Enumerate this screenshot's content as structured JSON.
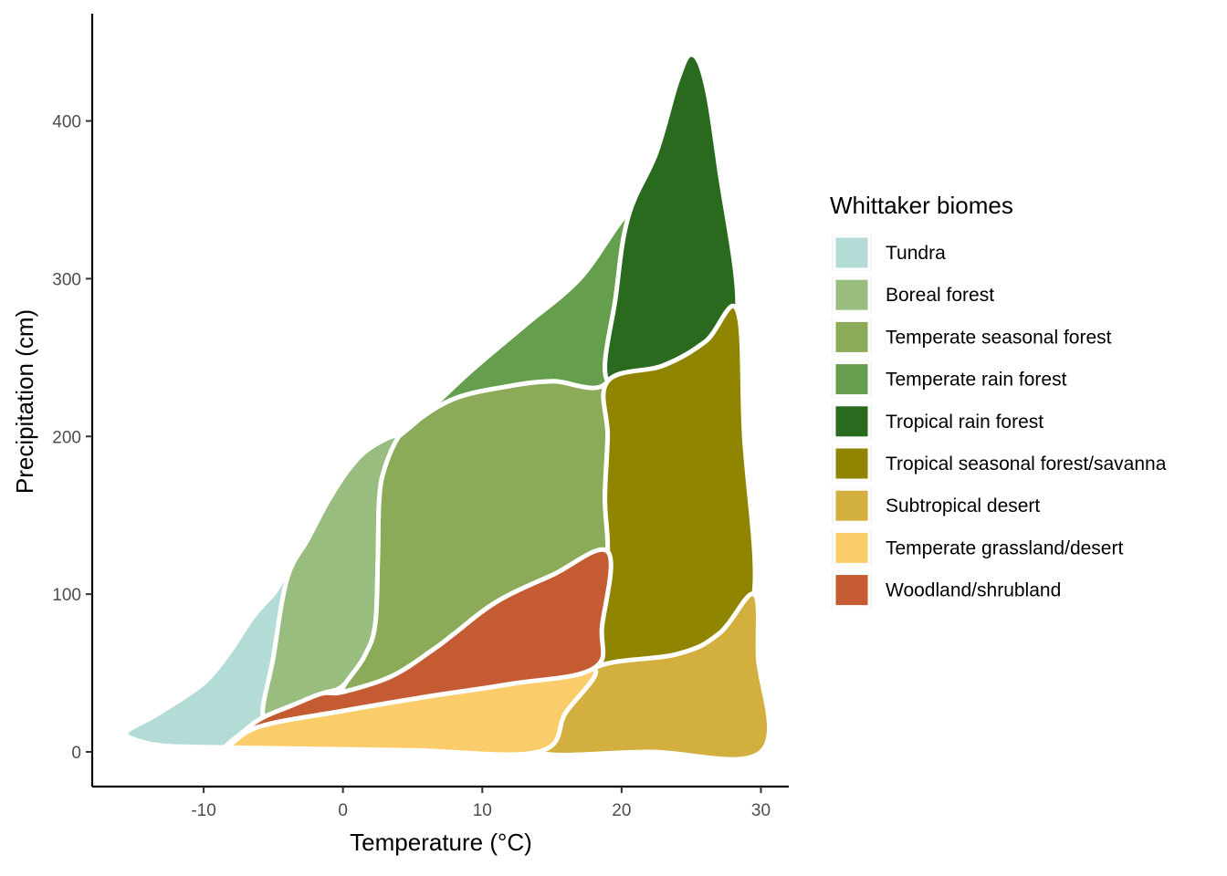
{
  "chart_data": {
    "type": "area",
    "title": "",
    "xlabel": "Temperature (°C)",
    "ylabel": "Precipitation (cm)",
    "xlim": [
      -18,
      32
    ],
    "ylim": [
      -22,
      468
    ],
    "x_ticks": [
      -10,
      0,
      10,
      20,
      30
    ],
    "x_tick_labels": [
      "-10",
      "0",
      "10",
      "20",
      "30"
    ],
    "y_ticks": [
      0,
      100,
      200,
      300,
      400
    ],
    "y_tick_labels": [
      "0",
      "100",
      "200",
      "300",
      "400"
    ],
    "grid": false,
    "legend": {
      "title": "Whittaker biomes",
      "placement": "right"
    },
    "series": [
      {
        "name": "Tundra",
        "color": "#B4DCD7",
        "points": [
          [
            -15.5,
            13
          ],
          [
            -15,
            8
          ],
          [
            -13,
            4
          ],
          [
            -10,
            3
          ],
          [
            -8.5,
            2.5
          ],
          [
            -7,
            4
          ],
          [
            -5.7,
            20
          ],
          [
            -5,
            60
          ],
          [
            -4,
            110
          ],
          [
            -5,
            100
          ],
          [
            -6.5,
            85
          ],
          [
            -8,
            65
          ],
          [
            -9.5,
            48
          ],
          [
            -11,
            37
          ],
          [
            -13.5,
            23
          ],
          [
            -15.5,
            13
          ]
        ]
      },
      {
        "name": "Boreal forest",
        "color": "#98BD7E",
        "points": [
          [
            -4,
            110
          ],
          [
            -2.5,
            135
          ],
          [
            -1,
            160
          ],
          [
            0.5,
            180
          ],
          [
            2,
            193
          ],
          [
            4,
            200
          ],
          [
            3,
            180
          ],
          [
            2.6,
            160
          ],
          [
            2.5,
            120
          ],
          [
            2.3,
            80
          ],
          [
            1.5,
            60
          ],
          [
            0,
            42
          ],
          [
            -1.5,
            37
          ],
          [
            -3.5,
            30
          ],
          [
            -5.7,
            22
          ],
          [
            -5,
            60
          ],
          [
            -4,
            110
          ]
        ]
      },
      {
        "name": "Temperate seasonal forest",
        "color": "#8BAB58",
        "points": [
          [
            4,
            200
          ],
          [
            5,
            208
          ],
          [
            8,
            224
          ],
          [
            12,
            232
          ],
          [
            15,
            235
          ],
          [
            19,
            235
          ],
          [
            19,
            200
          ],
          [
            18.8,
            160
          ],
          [
            19,
            127
          ],
          [
            15,
            112
          ],
          [
            11,
            95
          ],
          [
            8,
            75
          ],
          [
            6.5,
            65
          ],
          [
            3.5,
            48
          ],
          [
            0,
            38
          ],
          [
            1.5,
            60
          ],
          [
            2.3,
            80
          ],
          [
            2.5,
            120
          ],
          [
            2.6,
            160
          ],
          [
            3,
            180
          ],
          [
            4,
            200
          ]
        ]
      },
      {
        "name": "Temperate rain forest",
        "color": "#659E4C",
        "points": [
          [
            4,
            200
          ],
          [
            6,
            215
          ],
          [
            9,
            240
          ],
          [
            13,
            270
          ],
          [
            17,
            300
          ],
          [
            20.5,
            340
          ],
          [
            19.6,
            290
          ],
          [
            19,
            235
          ],
          [
            15,
            235
          ],
          [
            12,
            232
          ],
          [
            8,
            224
          ],
          [
            5,
            208
          ],
          [
            4,
            200
          ]
        ]
      },
      {
        "name": "Tropical rain forest",
        "color": "#2A6A1F",
        "points": [
          [
            20.5,
            340
          ],
          [
            22.5,
            380
          ],
          [
            24,
            425
          ],
          [
            25,
            442
          ],
          [
            26,
            425
          ],
          [
            27,
            370
          ],
          [
            28.3,
            280
          ],
          [
            26,
            260
          ],
          [
            23,
            245
          ],
          [
            19,
            235
          ],
          [
            19.6,
            290
          ],
          [
            20.5,
            340
          ]
        ]
      },
      {
        "name": "Tropical seasonal forest/savanna",
        "color": "#8F8501",
        "points": [
          [
            19,
            235
          ],
          [
            23,
            245
          ],
          [
            26,
            260
          ],
          [
            28.3,
            280
          ],
          [
            28.8,
            200
          ],
          [
            29.5,
            100
          ],
          [
            27,
            75
          ],
          [
            24,
            62
          ],
          [
            18,
            53
          ],
          [
            18.6,
            80
          ],
          [
            19,
            127
          ],
          [
            18.8,
            160
          ],
          [
            19,
            200
          ],
          [
            19,
            235
          ]
        ]
      },
      {
        "name": "Subtropical desert",
        "color": "#D3AF40",
        "points": [
          [
            18,
            53
          ],
          [
            24,
            62
          ],
          [
            27,
            75
          ],
          [
            29.5,
            100
          ],
          [
            29.8,
            60
          ],
          [
            30,
            0
          ],
          [
            22,
            0
          ],
          [
            14,
            0
          ],
          [
            16,
            25
          ],
          [
            18,
            53
          ]
        ]
      },
      {
        "name": "Temperate grassland/desert",
        "color": "#FBCD6A",
        "points": [
          [
            -10,
            3
          ],
          [
            -8.5,
            2.5
          ],
          [
            -6,
            16
          ],
          [
            0,
            26
          ],
          [
            6,
            35
          ],
          [
            12,
            43
          ],
          [
            18,
            53
          ],
          [
            16,
            25
          ],
          [
            14,
            0
          ],
          [
            5,
            1
          ],
          [
            -3,
            2
          ],
          [
            -10,
            3
          ]
        ]
      },
      {
        "name": "Woodland/shrubland",
        "color": "#C45B32",
        "points": [
          [
            -8.5,
            2.5
          ],
          [
            -7,
            14
          ],
          [
            -5.7,
            22
          ],
          [
            -3.5,
            30
          ],
          [
            -1.5,
            37
          ],
          [
            0,
            38
          ],
          [
            3.5,
            48
          ],
          [
            6.5,
            65
          ],
          [
            8,
            75
          ],
          [
            11,
            95
          ],
          [
            15,
            112
          ],
          [
            19,
            127
          ],
          [
            18.6,
            80
          ],
          [
            18,
            53
          ],
          [
            12,
            43
          ],
          [
            6,
            35
          ],
          [
            0,
            26
          ],
          [
            -6,
            16
          ],
          [
            -8.5,
            2.5
          ]
        ]
      }
    ]
  }
}
